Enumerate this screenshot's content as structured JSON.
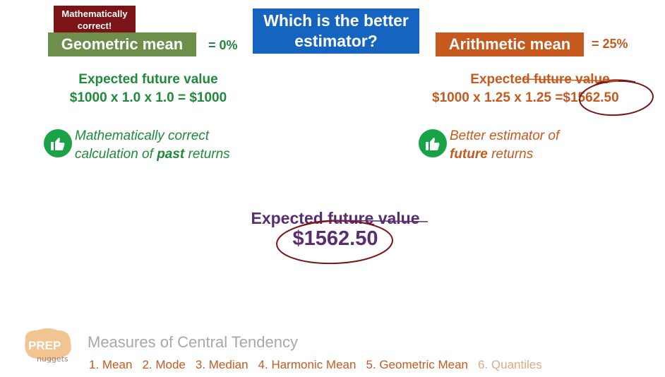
{
  "badge": {
    "line1": "Mathematically",
    "line2": "correct!"
  },
  "geometric": {
    "label": "Geometric mean",
    "value": "= 0%",
    "efv_title": "Expected future value",
    "efv_calc": "$1000 x 1.0 x 1.0 = $1000",
    "note_line1": "Mathematically correct",
    "note_line2_pre": "calculation of ",
    "note_line2_bold": "past",
    "note_line2_post": " returns"
  },
  "question": {
    "line1": "Which is the better",
    "line2": "estimator?"
  },
  "arithmetic": {
    "label": "Arithmetic mean",
    "value": "= 25%",
    "efv_title": "Expected future value",
    "efv_calc_pre": "$1000 x 1.25 x 1.25 =",
    "efv_calc_result": "$1562.50",
    "note_line1": "Better estimator of",
    "note_line2_bold": "future",
    "note_line2_post": " returns"
  },
  "center": {
    "title": "Expected future value",
    "value": "$1562.50"
  },
  "footer": {
    "logo_top": "PREP",
    "logo_bottom": "nuggets",
    "title": "Measures of Central Tendency",
    "nav": [
      "1. Mean",
      "2. Mode",
      "3. Median",
      "4. Harmonic Mean",
      "5. Geometric Mean",
      "6. Quantiles"
    ]
  },
  "colors": {
    "green": "#1f8a3b",
    "orange": "#c65a1e",
    "purple": "#5a2d72",
    "blue": "#1565c0",
    "darkred": "#7b1416",
    "circle": "#7b1416"
  },
  "icons": [
    "thumbs-up-icon"
  ]
}
